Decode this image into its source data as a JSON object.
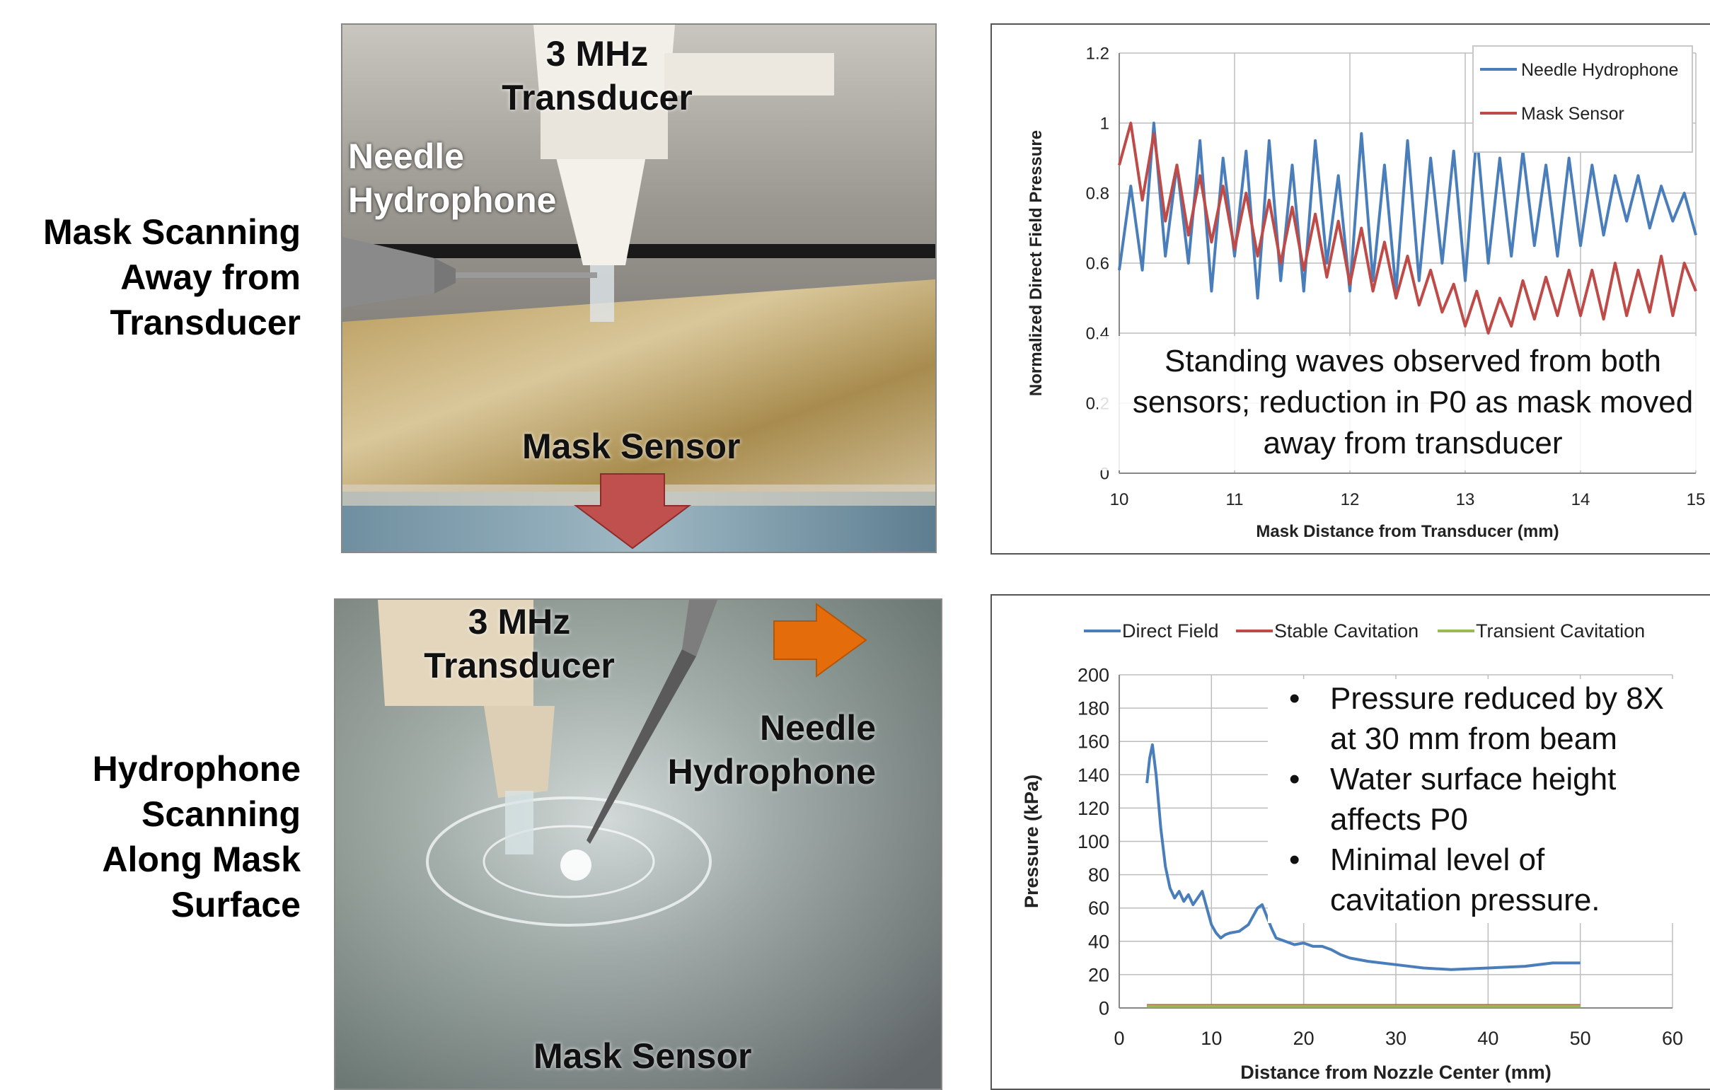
{
  "labels": {
    "row1": [
      "Mask Scanning",
      "Away from",
      "Transducer"
    ],
    "row2": [
      "Hydrophone",
      "Scanning",
      "Along Mask",
      "Surface"
    ]
  },
  "photo1": {
    "transducer": [
      "3 MHz",
      "Transducer"
    ],
    "hydrophone": [
      "Needle",
      "Hydrophone"
    ],
    "mask": "Mask Sensor"
  },
  "photo2": {
    "transducer": [
      "3 MHz",
      "Transducer"
    ],
    "hydrophone": [
      "Needle",
      "Hydrophone"
    ],
    "mask": "Mask Sensor"
  },
  "colors": {
    "blue": "#4a7ebb",
    "red": "#be4b48",
    "green": "#98b954",
    "arrow_red": "#c0504d",
    "arrow_orange": "#e46c0a"
  },
  "chart_data": [
    {
      "type": "line",
      "xlabel": "Mask Distance from Transducer (mm)",
      "ylabel": "Normalized Direct Field Pressure",
      "xlim": [
        10,
        15
      ],
      "ylim": [
        0,
        1.2
      ],
      "xticks": [
        "10",
        "11",
        "12",
        "13",
        "14",
        "15"
      ],
      "yticks": [
        "0",
        "0.2",
        "0.4",
        "0.6",
        "0.8",
        "1",
        "1.2"
      ],
      "grid": true,
      "legend_position": "top-right",
      "annotation": [
        "Standing waves observed from both",
        "sensors; reduction in P0 as mask moved",
        "away from transducer"
      ],
      "series": [
        {
          "name": "Needle Hydrophone",
          "x": [
            10.0,
            10.1,
            10.2,
            10.3,
            10.4,
            10.5,
            10.6,
            10.7,
            10.8,
            10.9,
            11.0,
            11.1,
            11.2,
            11.3,
            11.4,
            11.5,
            11.6,
            11.7,
            11.8,
            11.9,
            12.0,
            12.1,
            12.2,
            12.3,
            12.4,
            12.5,
            12.6,
            12.7,
            12.8,
            12.9,
            13.0,
            13.1,
            13.2,
            13.3,
            13.4,
            13.5,
            13.6,
            13.7,
            13.8,
            13.9,
            14.0,
            14.1,
            14.2,
            14.3,
            14.4,
            14.5,
            14.6,
            14.7,
            14.8,
            14.9,
            15.0
          ],
          "values": [
            0.58,
            0.82,
            0.58,
            1.0,
            0.62,
            0.88,
            0.6,
            0.95,
            0.52,
            0.9,
            0.62,
            0.92,
            0.5,
            0.95,
            0.55,
            0.88,
            0.52,
            0.95,
            0.6,
            0.85,
            0.52,
            0.97,
            0.55,
            0.88,
            0.52,
            0.95,
            0.55,
            0.9,
            0.6,
            0.92,
            0.55,
            0.97,
            0.6,
            0.9,
            0.62,
            0.92,
            0.65,
            0.88,
            0.62,
            0.9,
            0.65,
            0.88,
            0.68,
            0.85,
            0.72,
            0.85,
            0.7,
            0.82,
            0.72,
            0.8,
            0.68
          ]
        },
        {
          "name": "Mask Sensor",
          "x": [
            10.0,
            10.1,
            10.2,
            10.3,
            10.4,
            10.5,
            10.6,
            10.7,
            10.8,
            10.9,
            11.0,
            11.1,
            11.2,
            11.3,
            11.4,
            11.5,
            11.6,
            11.7,
            11.8,
            11.9,
            12.0,
            12.1,
            12.2,
            12.3,
            12.4,
            12.5,
            12.6,
            12.7,
            12.8,
            12.9,
            13.0,
            13.1,
            13.2,
            13.3,
            13.4,
            13.5,
            13.6,
            13.7,
            13.8,
            13.9,
            14.0,
            14.1,
            14.2,
            14.3,
            14.4,
            14.5,
            14.6,
            14.7,
            14.8,
            14.9,
            15.0
          ],
          "values": [
            0.88,
            1.0,
            0.78,
            0.97,
            0.72,
            0.88,
            0.68,
            0.85,
            0.66,
            0.82,
            0.64,
            0.8,
            0.62,
            0.78,
            0.6,
            0.76,
            0.58,
            0.74,
            0.56,
            0.72,
            0.54,
            0.7,
            0.52,
            0.66,
            0.5,
            0.62,
            0.48,
            0.58,
            0.46,
            0.54,
            0.42,
            0.52,
            0.4,
            0.5,
            0.42,
            0.55,
            0.44,
            0.56,
            0.45,
            0.58,
            0.45,
            0.58,
            0.44,
            0.6,
            0.45,
            0.58,
            0.46,
            0.62,
            0.45,
            0.6,
            0.52
          ]
        }
      ]
    },
    {
      "type": "line",
      "xlabel": "Distance from Nozzle Center (mm)",
      "ylabel": "Pressure (kPa)",
      "xlim": [
        0,
        60
      ],
      "ylim": [
        0,
        200
      ],
      "xticks": [
        "0",
        "10",
        "20",
        "30",
        "40",
        "50",
        "60"
      ],
      "yticks": [
        "0",
        "20",
        "40",
        "60",
        "80",
        "100",
        "120",
        "140",
        "160",
        "180",
        "200"
      ],
      "grid": true,
      "legend_position": "top",
      "annotation": [
        {
          "bullet": true,
          "lines": [
            "Pressure reduced by 8X",
            "at 30 mm from beam"
          ]
        },
        {
          "bullet": true,
          "lines": [
            "Water surface height",
            "affects P0"
          ]
        },
        {
          "bullet": true,
          "lines": [
            "Minimal level of",
            "cavitation pressure."
          ]
        }
      ],
      "series": [
        {
          "name": "Direct Field",
          "x": [
            3.0,
            3.3,
            3.6,
            4.0,
            4.5,
            5.0,
            5.5,
            6.0,
            6.5,
            7.0,
            7.5,
            8.0,
            8.5,
            9.0,
            9.5,
            10.0,
            10.5,
            11.0,
            11.5,
            12.0,
            13.0,
            14.0,
            15.0,
            15.5,
            16.0,
            16.5,
            17.0,
            18.0,
            19.0,
            20.0,
            21.0,
            22.0,
            23.0,
            24.0,
            25.0,
            27.0,
            30.0,
            33.0,
            36.0,
            40.0,
            44.0,
            47.0,
            50.0
          ],
          "values": [
            135,
            150,
            158,
            140,
            108,
            85,
            72,
            66,
            70,
            64,
            68,
            62,
            66,
            70,
            60,
            50,
            45,
            42,
            44,
            45,
            46,
            50,
            60,
            62,
            55,
            48,
            42,
            40,
            38,
            39,
            37,
            37,
            35,
            32,
            30,
            28,
            26,
            24,
            23,
            24,
            25,
            27,
            27
          ]
        },
        {
          "name": "Stable Cavitation",
          "x": [
            3.0,
            50.0
          ],
          "values": [
            1.5,
            1.5
          ]
        },
        {
          "name": "Transient Cavitation",
          "x": [
            3.0,
            50.0
          ],
          "values": [
            1.0,
            1.0
          ]
        }
      ]
    }
  ]
}
